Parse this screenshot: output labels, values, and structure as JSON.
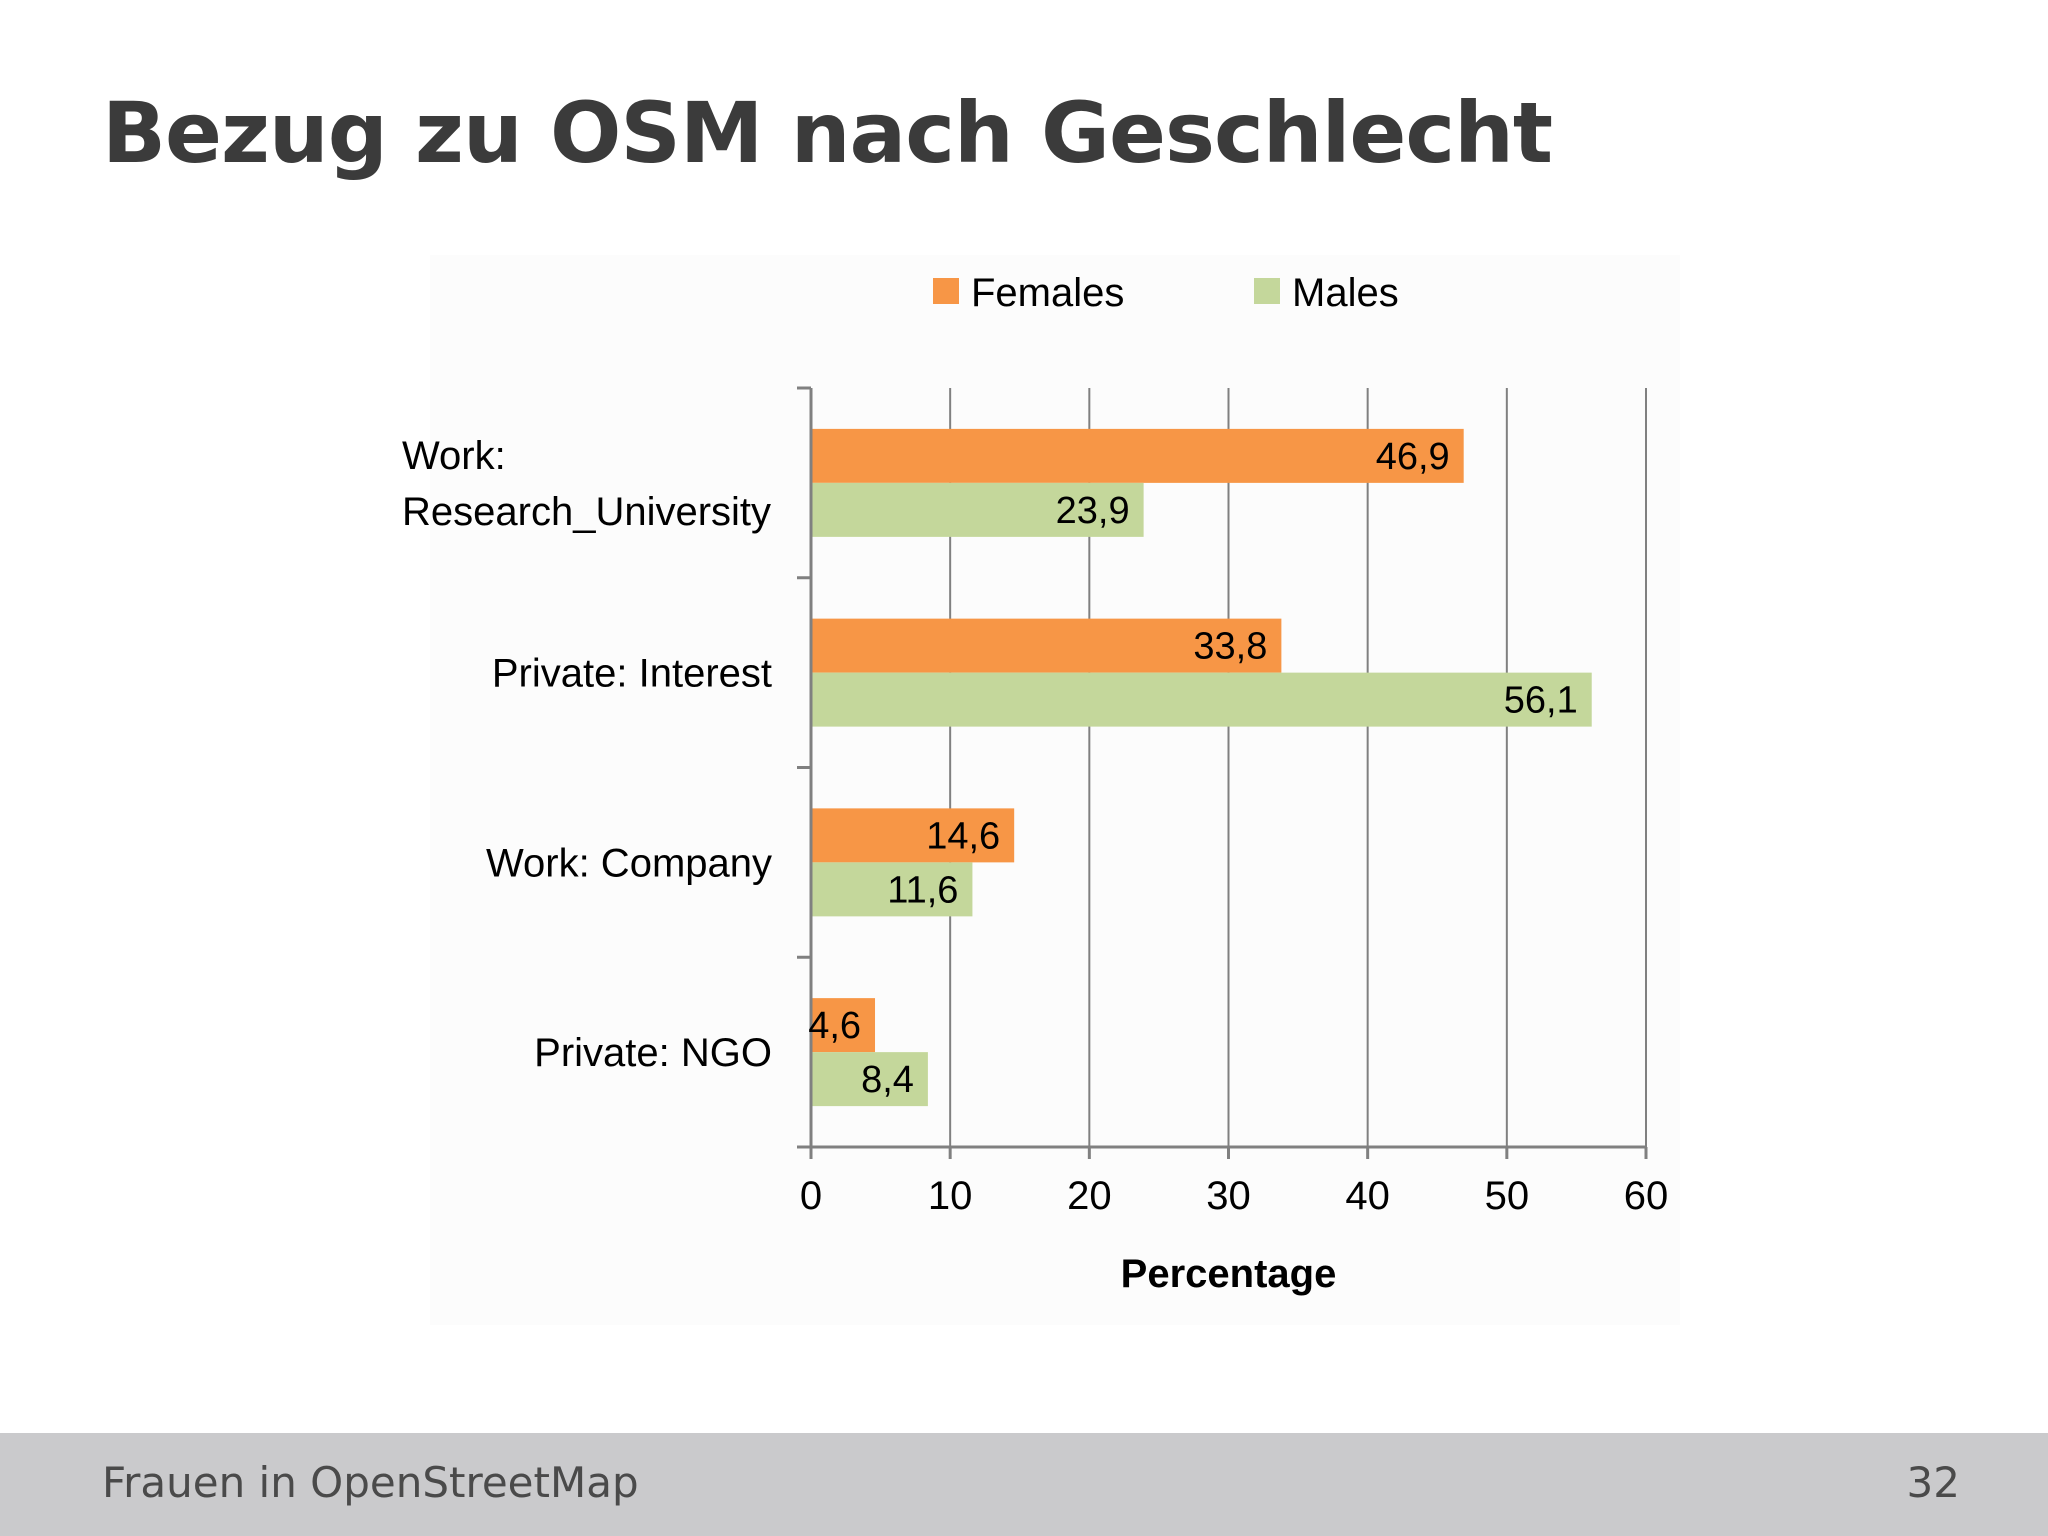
{
  "slide": {
    "title": "Bezug zu OSM nach Geschlecht",
    "footer_text": "Frauen in OpenStreetMap",
    "page_number": "32"
  },
  "colors": {
    "females": "#f79646",
    "males": "#c4d79b",
    "grid": "#808080",
    "axis": "#808080",
    "text": "#000000"
  },
  "chart_data": {
    "type": "bar",
    "orientation": "horizontal",
    "categories": [
      [
        "Work:",
        "Research_University"
      ],
      [
        "Private: Interest"
      ],
      [
        "Work: Company"
      ],
      [
        "Private: NGO"
      ]
    ],
    "series": [
      {
        "name": "Females",
        "values": [
          46.9,
          33.8,
          14.6,
          4.6
        ],
        "labels": [
          "46,9",
          "33,8",
          "14,6",
          "4,6"
        ]
      },
      {
        "name": "Males",
        "values": [
          23.9,
          56.1,
          11.6,
          8.4
        ],
        "labels": [
          "23,9",
          "56,1",
          "11,6",
          "8,4"
        ]
      }
    ],
    "xlabel": "Percentage",
    "xlim": [
      0,
      60
    ],
    "xticks": [
      0,
      10,
      20,
      30,
      40,
      50,
      60
    ],
    "grid": true,
    "legend": "top"
  }
}
